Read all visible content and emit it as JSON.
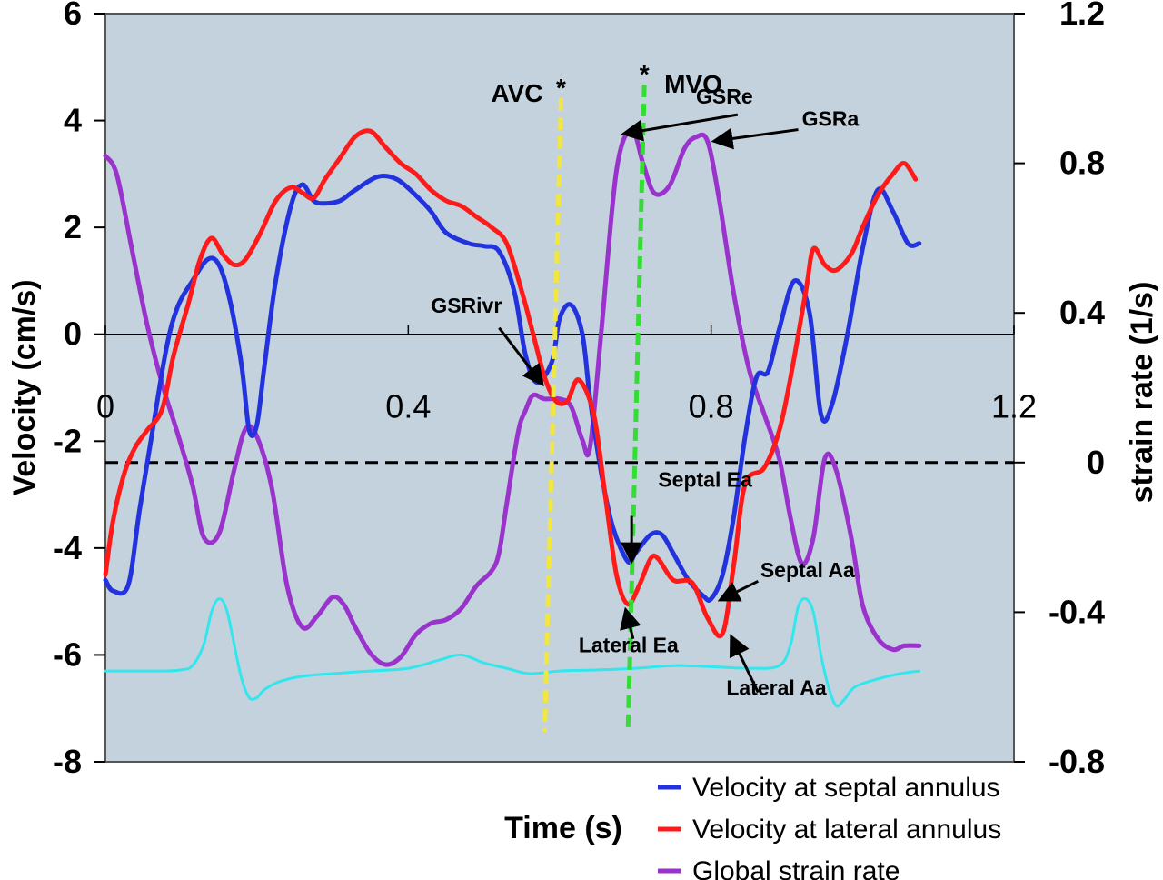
{
  "chart_data": {
    "type": "line",
    "xlabel": "Time (s)",
    "ylabel": "Velocity (cm/s)",
    "y2label": "strain rate (1/s)",
    "xlim": [
      0,
      1.2
    ],
    "ylim": [
      -8,
      6
    ],
    "y2lim": [
      -0.8,
      1.2
    ],
    "x_ticks": [
      "0",
      "0.4",
      "0.8",
      "1.2"
    ],
    "y_ticks": [
      "6",
      "4",
      "2",
      "0",
      "-2",
      "-4",
      "-6",
      "-8"
    ],
    "y2_ticks": [
      "1.2",
      "0.8",
      "0.4",
      "0",
      "-0.4",
      "-0.8"
    ],
    "grid": false,
    "legend_position": "bottom-right",
    "colors": {
      "plot_bg": "#c3d2dc",
      "septal": "#2233dd",
      "lateral": "#ff1a1a",
      "strain": "#9933cc",
      "ecg": "#33e6ee",
      "avc": "#f2e640",
      "mvo": "#33dd33"
    },
    "series": [
      {
        "name": "Velocity at septal annulus",
        "axis": "left",
        "color": "#2233dd",
        "x": [
          0.0,
          0.01,
          0.03,
          0.045,
          0.06,
          0.08,
          0.095,
          0.115,
          0.135,
          0.15,
          0.165,
          0.18,
          0.19,
          0.2,
          0.21,
          0.225,
          0.245,
          0.26,
          0.275,
          0.29,
          0.31,
          0.33,
          0.36,
          0.385,
          0.41,
          0.43,
          0.45,
          0.48,
          0.5,
          0.52,
          0.54,
          0.555,
          0.57,
          0.59,
          0.6,
          0.615,
          0.63,
          0.64,
          0.655,
          0.67,
          0.69,
          0.7,
          0.72,
          0.735,
          0.75,
          0.77,
          0.79,
          0.8,
          0.815,
          0.83,
          0.845,
          0.86,
          0.875,
          0.89,
          0.91,
          0.93,
          0.945,
          0.96,
          0.98,
          1.0,
          1.02,
          1.04,
          1.06,
          1.075
        ],
        "y": [
          -4.6,
          -4.8,
          -4.7,
          -3.3,
          -2.0,
          -0.3,
          0.5,
          1.0,
          1.4,
          1.3,
          0.6,
          -0.6,
          -1.8,
          -1.7,
          -0.6,
          1.0,
          2.4,
          2.8,
          2.5,
          2.45,
          2.5,
          2.7,
          2.95,
          2.9,
          2.6,
          2.3,
          1.9,
          1.7,
          1.65,
          1.55,
          0.8,
          -0.4,
          -0.9,
          -0.5,
          0.3,
          0.55,
          0.0,
          -1.2,
          -2.6,
          -3.6,
          -4.25,
          -4.1,
          -3.75,
          -3.75,
          -4.1,
          -4.6,
          -4.9,
          -4.95,
          -4.5,
          -3.4,
          -1.9,
          -0.8,
          -0.7,
          0.1,
          1.0,
          0.4,
          -1.5,
          -1.3,
          0.0,
          1.6,
          2.7,
          2.3,
          1.7,
          1.7
        ]
      },
      {
        "name": "Velocity at lateral annulus",
        "axis": "left",
        "color": "#ff1a1a",
        "x": [
          0.0,
          0.01,
          0.025,
          0.04,
          0.055,
          0.075,
          0.09,
          0.11,
          0.125,
          0.14,
          0.155,
          0.17,
          0.185,
          0.205,
          0.225,
          0.245,
          0.26,
          0.275,
          0.29,
          0.31,
          0.33,
          0.35,
          0.37,
          0.39,
          0.41,
          0.43,
          0.45,
          0.47,
          0.49,
          0.51,
          0.53,
          0.55,
          0.565,
          0.58,
          0.595,
          0.61,
          0.625,
          0.645,
          0.66,
          0.675,
          0.69,
          0.705,
          0.72,
          0.73,
          0.75,
          0.775,
          0.795,
          0.815,
          0.83,
          0.845,
          0.87,
          0.89,
          0.905,
          0.925,
          0.935,
          0.95,
          0.965,
          0.985,
          1.0,
          1.02,
          1.04,
          1.055,
          1.07
        ],
        "y": [
          -4.5,
          -3.5,
          -2.6,
          -2.1,
          -1.8,
          -1.4,
          -0.4,
          0.6,
          1.4,
          1.8,
          1.5,
          1.3,
          1.4,
          1.9,
          2.5,
          2.75,
          2.65,
          2.55,
          2.9,
          3.3,
          3.7,
          3.8,
          3.5,
          3.2,
          3.0,
          2.7,
          2.5,
          2.4,
          2.2,
          2.0,
          1.7,
          0.8,
          0.0,
          -0.8,
          -1.25,
          -1.25,
          -0.85,
          -1.5,
          -3.0,
          -4.5,
          -5.05,
          -4.7,
          -4.2,
          -4.2,
          -4.6,
          -4.65,
          -5.3,
          -5.6,
          -4.3,
          -2.8,
          -2.5,
          -1.8,
          -0.8,
          0.8,
          1.6,
          1.3,
          1.2,
          1.5,
          2.0,
          2.6,
          3.0,
          3.2,
          2.9
        ]
      },
      {
        "name": "Global strain rate",
        "axis": "right",
        "color": "#9933cc",
        "x": [
          0.0,
          0.015,
          0.035,
          0.055,
          0.075,
          0.095,
          0.115,
          0.13,
          0.15,
          0.17,
          0.185,
          0.2,
          0.22,
          0.24,
          0.26,
          0.28,
          0.3,
          0.315,
          0.33,
          0.35,
          0.37,
          0.39,
          0.41,
          0.43,
          0.45,
          0.47,
          0.49,
          0.51,
          0.52,
          0.53,
          0.545,
          0.555,
          0.565,
          0.58,
          0.6,
          0.615,
          0.63,
          0.64,
          0.655,
          0.675,
          0.695,
          0.71,
          0.725,
          0.745,
          0.765,
          0.78,
          0.795,
          0.81,
          0.83,
          0.85,
          0.87,
          0.89,
          0.905,
          0.92,
          0.935,
          0.95,
          0.965,
          0.985,
          1.0,
          1.02,
          1.04,
          1.055,
          1.075
        ],
        "y": [
          0.82,
          0.77,
          0.57,
          0.37,
          0.21,
          0.08,
          -0.06,
          -0.2,
          -0.19,
          -0.02,
          0.09,
          0.07,
          -0.07,
          -0.33,
          -0.44,
          -0.41,
          -0.36,
          -0.38,
          -0.44,
          -0.51,
          -0.54,
          -0.52,
          -0.46,
          -0.43,
          -0.42,
          -0.39,
          -0.33,
          -0.29,
          -0.24,
          -0.11,
          0.08,
          0.14,
          0.18,
          0.17,
          0.17,
          0.15,
          0.06,
          0.04,
          0.35,
          0.78,
          0.89,
          0.8,
          0.72,
          0.74,
          0.84,
          0.87,
          0.86,
          0.71,
          0.45,
          0.25,
          0.13,
          0.01,
          -0.15,
          -0.27,
          -0.2,
          0.01,
          -0.02,
          -0.2,
          -0.38,
          -0.47,
          -0.5,
          -0.49,
          -0.49
        ]
      },
      {
        "name": "",
        "axis": "left",
        "color": "#33e6ee",
        "x": [
          0.0,
          0.02,
          0.05,
          0.08,
          0.1,
          0.115,
          0.13,
          0.14,
          0.15,
          0.16,
          0.17,
          0.18,
          0.19,
          0.2,
          0.21,
          0.23,
          0.26,
          0.3,
          0.35,
          0.4,
          0.44,
          0.47,
          0.5,
          0.53,
          0.56,
          0.6,
          0.65,
          0.7,
          0.75,
          0.8,
          0.85,
          0.89,
          0.905,
          0.915,
          0.925,
          0.935,
          0.945,
          0.955,
          0.965,
          0.975,
          0.99,
          1.02,
          1.05,
          1.075
        ],
        "y": [
          -6.3,
          -6.3,
          -6.3,
          -6.3,
          -6.28,
          -6.2,
          -5.8,
          -5.2,
          -4.95,
          -5.15,
          -5.8,
          -6.45,
          -6.8,
          -6.8,
          -6.65,
          -6.5,
          -6.4,
          -6.35,
          -6.3,
          -6.25,
          -6.1,
          -6.0,
          -6.15,
          -6.25,
          -6.35,
          -6.3,
          -6.28,
          -6.25,
          -6.2,
          -6.22,
          -6.25,
          -6.2,
          -5.8,
          -5.1,
          -4.95,
          -5.2,
          -6.0,
          -6.6,
          -6.95,
          -6.85,
          -6.6,
          -6.45,
          -6.35,
          -6.3
        ]
      }
    ],
    "markers": [
      {
        "label": "AVC",
        "x": 0.585,
        "color": "#f2e640"
      },
      {
        "label": "MVO",
        "x": 0.695,
        "color": "#33dd33"
      }
    ],
    "annotations": [
      {
        "text": "GSRe",
        "x": 0.78,
        "y": 0.96,
        "axis": "right"
      },
      {
        "text": "GSRa",
        "x": 0.92,
        "y": 0.9,
        "axis": "right"
      },
      {
        "text": "GSRivr",
        "x": 0.43,
        "y": 0.4,
        "axis": "right"
      },
      {
        "text": "Septal Ea",
        "x": 0.73,
        "y": -2.85,
        "axis": "left"
      },
      {
        "text": "Septal Aa",
        "x": 0.865,
        "y": -4.55,
        "axis": "left"
      },
      {
        "text": "Lateral Ea",
        "x": 0.625,
        "y": -5.95,
        "axis": "left"
      },
      {
        "text": "Lateral Aa",
        "x": 0.82,
        "y": -6.75,
        "axis": "left"
      }
    ]
  }
}
